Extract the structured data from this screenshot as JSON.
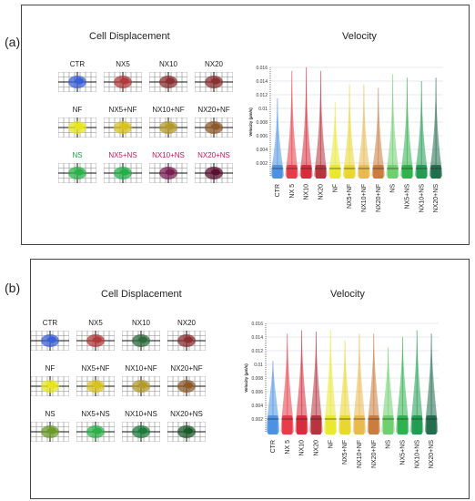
{
  "panels": [
    {
      "label": "(a)",
      "cell_heading": "Cell Displacement",
      "velocity_heading": "Velocity",
      "cell_rows": [
        {
          "labels": [
            "CTR",
            "NX5",
            "NX10",
            "NX20"
          ],
          "label_colors": [
            "#222",
            "#222",
            "#222",
            "#222"
          ],
          "blob_colors": [
            "#3b5fd6",
            "#b13a3a",
            "#8a3030",
            "#8a3030"
          ]
        },
        {
          "labels": [
            "NF",
            "NX5+NF",
            "NX10+NF",
            "NX20+NF"
          ],
          "label_colors": [
            "#222",
            "#222",
            "#222",
            "#222"
          ],
          "blob_colors": [
            "#e6e61c",
            "#d8c21c",
            "#b49a2a",
            "#8c5a2a"
          ]
        },
        {
          "labels": [
            "NS",
            "NX5+NS",
            "NX10+NS",
            "NX20+NS"
          ],
          "label_colors": [
            "#1aa34a",
            "#c2185b",
            "#c2185b",
            "#c2185b"
          ],
          "blob_colors": [
            "#2bb14a",
            "#22b04a",
            "#7a1f52",
            "#5a1030"
          ]
        }
      ]
    },
    {
      "label": "(b)",
      "cell_heading": "Cell Displacement",
      "velocity_heading": "Velocity",
      "cell_rows": [
        {
          "labels": [
            "CTR",
            "NX5",
            "NX10",
            "NX20"
          ],
          "label_colors": [
            "#222",
            "#222",
            "#222",
            "#222"
          ],
          "blob_colors": [
            "#3b5fd6",
            "#b13a3a",
            "#2d6a3a",
            "#8a3030"
          ]
        },
        {
          "labels": [
            "NF",
            "NX5+NF",
            "NX10+NF",
            "NX20+NF"
          ],
          "label_colors": [
            "#222",
            "#222",
            "#222",
            "#222"
          ],
          "blob_colors": [
            "#e6e61c",
            "#d8c21c",
            "#b49a2a",
            "#8c5a2a"
          ]
        },
        {
          "labels": [
            "NS",
            "NX5+NS",
            "NX10+NS",
            "NX20+NS"
          ],
          "label_colors": [
            "#222",
            "#222",
            "#222",
            "#222"
          ],
          "blob_colors": [
            "#6a9a2a",
            "#2bb14a",
            "#1d7a3a",
            "#1d5a2a"
          ]
        }
      ]
    }
  ],
  "chart_data": [
    {
      "type": "violin",
      "title": "Velocity",
      "ylabel": "Velocity (µm/s)",
      "ylim": [
        0,
        0.016
      ],
      "yticks": [
        0.002,
        0.004,
        0.006,
        0.008,
        0.01,
        0.012,
        0.014,
        0.016
      ],
      "ytick_labels": [
        "0.002",
        "0.004",
        "0.006",
        "0.008",
        "0.01",
        "0.012",
        "0.014",
        "0.016"
      ],
      "categories": [
        "CTR",
        "NX 5",
        "NX10",
        "NX20",
        "NF",
        "NX5+NF",
        "NX10+NF",
        "NX20+NF",
        "NS",
        "NX5+NS",
        "NX10+NS",
        "NX20+NS"
      ],
      "max": [
        0.0115,
        0.0155,
        0.016,
        0.0155,
        0.011,
        0.0135,
        0.0135,
        0.013,
        0.015,
        0.0145,
        0.014,
        0.0145
      ],
      "median": [
        0.0012,
        0.0012,
        0.0012,
        0.0012,
        0.0012,
        0.0012,
        0.0012,
        0.0012,
        0.0012,
        0.0012,
        0.0012,
        0.0012
      ],
      "colors": [
        "#4a90e0",
        "#e63946",
        "#d62839",
        "#b5303a",
        "#e8e82a",
        "#e8d62a",
        "#e8b84a",
        "#c87a3a",
        "#6ccf6c",
        "#2bb14a",
        "#1e9a50",
        "#1d6a4a"
      ]
    },
    {
      "type": "violin",
      "title": "Velocity",
      "ylabel": "Velocity (µm/s)",
      "ylim": [
        0,
        0.016
      ],
      "yticks": [
        0.002,
        0.004,
        0.006,
        0.008,
        0.01,
        0.012,
        0.014,
        0.016
      ],
      "ytick_labels": [
        "0.002",
        "0.004",
        "0.006",
        "0.008",
        "0.01",
        "0.012",
        "0.014",
        "0.016"
      ],
      "categories": [
        "CTR",
        "NX 5",
        "NX10",
        "NX20",
        "NF",
        "NX5+NF",
        "NX10+NF",
        "NX20+NF",
        "NS",
        "NX5+NS",
        "NX10+NS",
        "NX20+NS"
      ],
      "max": [
        0.0105,
        0.0145,
        0.015,
        0.0148,
        0.015,
        0.0135,
        0.0145,
        0.0145,
        0.0125,
        0.014,
        0.015,
        0.0145
      ],
      "median": [
        0.002,
        0.002,
        0.002,
        0.002,
        0.002,
        0.002,
        0.002,
        0.002,
        0.002,
        0.002,
        0.002,
        0.002
      ],
      "colors": [
        "#4a90e0",
        "#e63946",
        "#d62839",
        "#b5303a",
        "#e8e82a",
        "#e8d62a",
        "#e8b84a",
        "#c87a3a",
        "#6ccf6c",
        "#2bb14a",
        "#1e9a50",
        "#1d6a4a"
      ]
    }
  ]
}
